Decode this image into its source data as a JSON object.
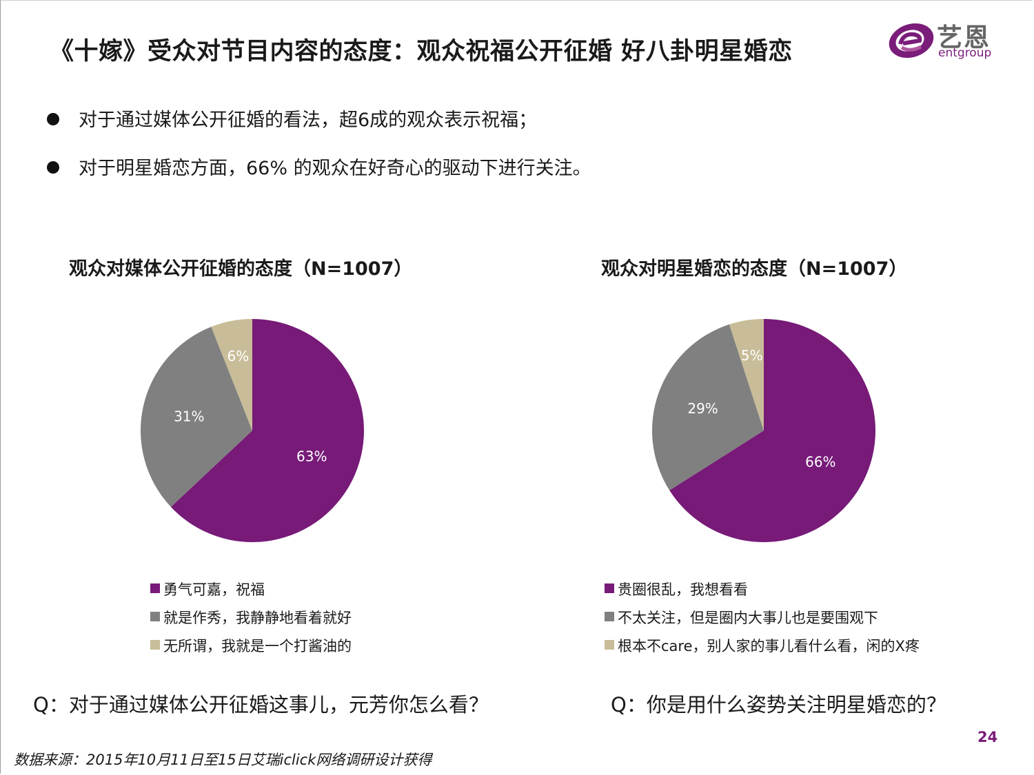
{
  "title": "《十嫁》受众对节目内容的态度：观众祝福公开征婚  好八卦明星婚恋",
  "logo": {
    "name": "艺恩",
    "sub": "entgroup"
  },
  "bullets": [
    "对于通过媒体公开征婚的看法，超6成的观众表示祝福；",
    "对于明星婚恋方面，66% 的观众在好奇心的驱动下进行关注。"
  ],
  "questions": [
    "Q：对于通过媒体公开征婚这事儿，元芳你怎么看？",
    "Q：你是用什么姿势关注明星婚恋的？"
  ],
  "page_number": "24",
  "source": "数据来源：2015年10月11日至15日艾瑞iclick网络调研设计获得",
  "colors": {
    "purple": "#771a78",
    "gray": "#808080",
    "beige": "#c8bd98",
    "accent": "#7a1c7a"
  },
  "chart_data": [
    {
      "type": "pie",
      "title": "观众对媒体公开征婚的态度（N=1007）",
      "categories": [
        "勇气可嘉，祝福",
        "就是作秀，我静静地看着就好",
        "无所谓，我就是一个打酱油的"
      ],
      "values": [
        63,
        31,
        6
      ],
      "labels": [
        "63%",
        "31%",
        "6%"
      ],
      "colors": [
        "#771a78",
        "#808080",
        "#c8bd98"
      ],
      "legend": "bottom"
    },
    {
      "type": "pie",
      "title": "观众对明星婚恋的态度（N=1007）",
      "categories": [
        "贵圈很乱，我想看看",
        "不太关注，但是圈内大事儿也是要围观下",
        "根本不care，别人家的事儿看什么看，闲的X疼"
      ],
      "values": [
        66,
        29,
        5
      ],
      "labels": [
        "66%",
        "29%",
        "5%"
      ],
      "colors": [
        "#771a78",
        "#808080",
        "#c8bd98"
      ],
      "legend": "bottom"
    }
  ]
}
